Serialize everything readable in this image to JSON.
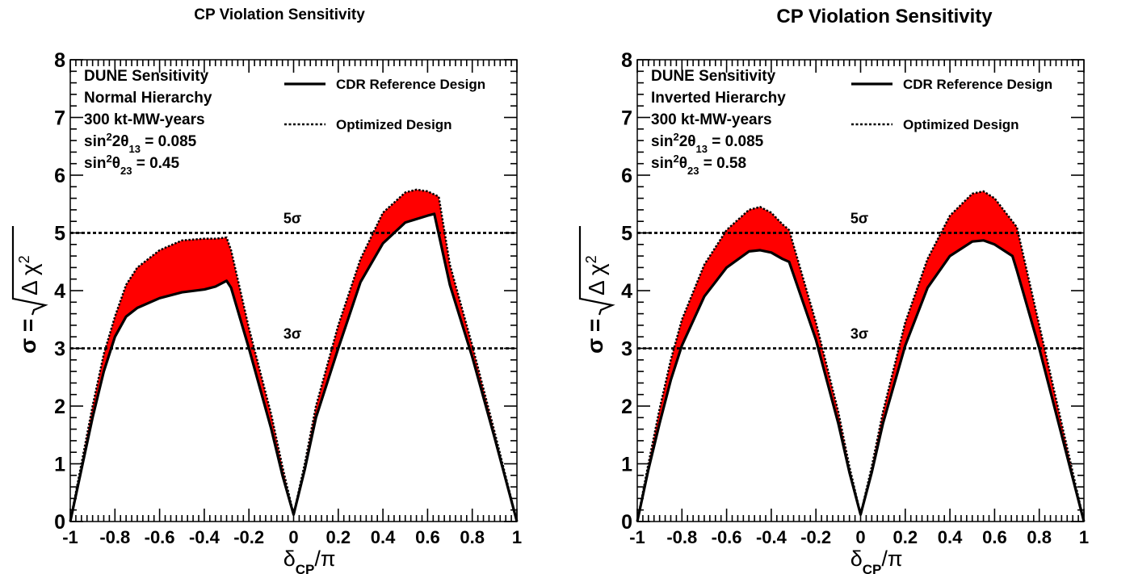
{
  "chart_data": [
    {
      "type": "area",
      "title": "CP Violation Sensitivity",
      "xlabel": "δCP/π",
      "ylabel": "σ = √Δχ²",
      "xlim": [
        -1,
        1
      ],
      "ylim": [
        0,
        8
      ],
      "x_ticks": [
        "-1",
        "-0.8",
        "-0.6",
        "-0.4",
        "-0.2",
        "0",
        "0.2",
        "0.4",
        "0.6",
        "0.8",
        "1"
      ],
      "y_ticks": [
        "0",
        "1",
        "2",
        "3",
        "4",
        "5",
        "6",
        "7",
        "8"
      ],
      "grid": false,
      "legend_position": "top-right",
      "info_lines": [
        "DUNE Sensitivity",
        "Normal Hierarchy",
        "300 kt-MW-years",
        "sin²2θ13 = 0.085",
        "sin²θ23 = 0.45"
      ],
      "reference_lines": [
        {
          "label": "5σ",
          "y": 5
        },
        {
          "label": "3σ",
          "y": 3
        }
      ],
      "band_color": "#ff0000",
      "series": [
        {
          "name": "CDR Reference Design",
          "style": "solid",
          "x": [
            -1,
            -0.95,
            -0.9,
            -0.85,
            -0.8,
            -0.75,
            -0.7,
            -0.6,
            -0.5,
            -0.4,
            -0.35,
            -0.3,
            -0.28,
            -0.2,
            -0.1,
            -0.05,
            0,
            0.05,
            0.1,
            0.2,
            0.3,
            0.4,
            0.5,
            0.6,
            0.63,
            0.7,
            0.8,
            0.9,
            1
          ],
          "y": [
            0,
            0.9,
            1.8,
            2.6,
            3.2,
            3.55,
            3.7,
            3.87,
            3.97,
            4.02,
            4.07,
            4.17,
            4.05,
            3.0,
            1.6,
            0.8,
            0.12,
            0.9,
            1.8,
            3.0,
            4.15,
            4.82,
            5.18,
            5.3,
            5.33,
            4.1,
            2.85,
            1.45,
            0
          ],
          "upper_x": [
            -1,
            -0.95,
            -0.9,
            -0.85,
            -0.8,
            -0.75,
            -0.7,
            -0.6,
            -0.5,
            -0.4,
            -0.35,
            -0.3,
            -0.28,
            -0.2,
            -0.1,
            -0.05,
            0,
            0.05,
            0.1,
            0.2,
            0.3,
            0.4,
            0.5,
            0.55,
            0.6,
            0.65,
            0.7,
            0.8,
            0.9,
            1
          ],
          "upper_y": [
            0,
            1.0,
            2.0,
            2.9,
            3.55,
            4.1,
            4.4,
            4.7,
            4.87,
            4.9,
            4.9,
            4.92,
            4.7,
            3.35,
            1.85,
            0.95,
            0.12,
            1.0,
            2.0,
            3.4,
            4.55,
            5.35,
            5.7,
            5.75,
            5.72,
            5.63,
            4.45,
            3.05,
            1.55,
            0
          ]
        },
        {
          "name": "Optimized Design",
          "style": "dotted"
        }
      ]
    },
    {
      "type": "area",
      "title": "CP Violation Sensitivity",
      "xlabel": "δCP/π",
      "ylabel": "σ = √Δχ²",
      "xlim": [
        -1,
        1
      ],
      "ylim": [
        0,
        8
      ],
      "x_ticks": [
        "-1",
        "-0.8",
        "-0.6",
        "-0.4",
        "-0.2",
        "0",
        "0.2",
        "0.4",
        "0.6",
        "0.8",
        "1"
      ],
      "y_ticks": [
        "0",
        "1",
        "2",
        "3",
        "4",
        "5",
        "6",
        "7",
        "8"
      ],
      "grid": false,
      "legend_position": "top-right",
      "info_lines": [
        "DUNE Sensitivity",
        "Inverted Hierarchy",
        "300 kt-MW-years",
        "sin²2θ13 = 0.085",
        "sin²θ23 = 0.58"
      ],
      "reference_lines": [
        {
          "label": "5σ",
          "y": 5
        },
        {
          "label": "3σ",
          "y": 3
        }
      ],
      "band_color": "#ff0000",
      "series": [
        {
          "name": "CDR Reference Design",
          "style": "solid",
          "x": [
            -1,
            -0.95,
            -0.9,
            -0.85,
            -0.8,
            -0.7,
            -0.6,
            -0.5,
            -0.45,
            -0.4,
            -0.35,
            -0.32,
            -0.2,
            -0.1,
            -0.05,
            0,
            0.05,
            0.1,
            0.2,
            0.3,
            0.4,
            0.5,
            0.55,
            0.6,
            0.68,
            0.7,
            0.8,
            0.9,
            1
          ],
          "y": [
            0,
            0.9,
            1.7,
            2.45,
            3.05,
            3.9,
            4.4,
            4.68,
            4.7,
            4.66,
            4.55,
            4.5,
            3.15,
            1.7,
            0.85,
            0.12,
            0.85,
            1.7,
            3.05,
            4.05,
            4.6,
            4.85,
            4.87,
            4.8,
            4.6,
            4.35,
            3.0,
            1.5,
            0
          ]
        },
        {
          "name": "Optimized Design",
          "style": "dotted",
          "x": [
            -1,
            -0.95,
            -0.9,
            -0.85,
            -0.8,
            -0.7,
            -0.6,
            -0.5,
            -0.45,
            -0.4,
            -0.35,
            -0.32,
            -0.2,
            -0.1,
            -0.05,
            0,
            0.05,
            0.1,
            0.2,
            0.3,
            0.4,
            0.5,
            0.55,
            0.6,
            0.65,
            0.7,
            0.8,
            0.9,
            1
          ],
          "y": [
            0,
            1.0,
            1.95,
            2.8,
            3.5,
            4.45,
            5.05,
            5.4,
            5.45,
            5.35,
            5.15,
            5.05,
            3.45,
            1.9,
            0.95,
            0.12,
            0.95,
            1.9,
            3.45,
            4.55,
            5.3,
            5.68,
            5.72,
            5.6,
            5.35,
            5.1,
            3.4,
            1.7,
            0
          ]
        }
      ]
    }
  ]
}
